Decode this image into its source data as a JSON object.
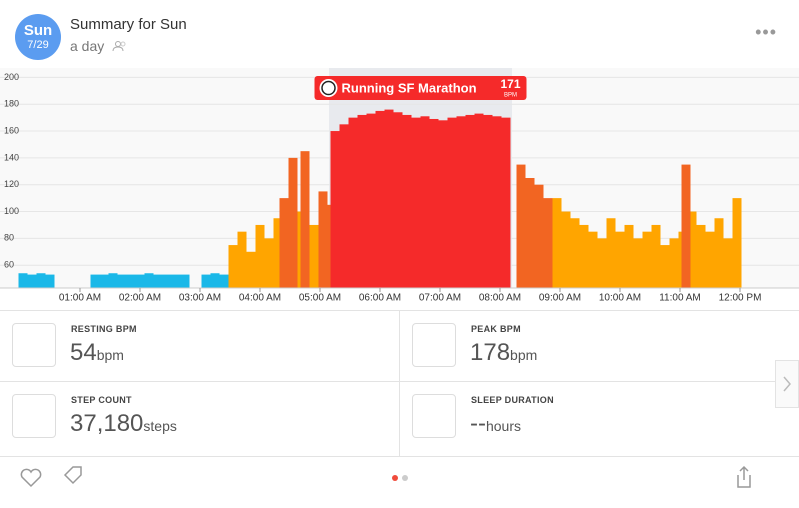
{
  "header": {
    "day": "Sun",
    "date": "7/29",
    "title": "Summary for Sun",
    "subtitle": "a day"
  },
  "chart_data": {
    "type": "bar",
    "xlim": [
      0,
      12.8
    ],
    "ylim": [
      43,
      207
    ],
    "yticks": [
      60,
      80,
      100,
      120,
      140,
      160,
      180,
      200
    ],
    "xticks": [
      {
        "value": 1,
        "label": "01:00 AM"
      },
      {
        "value": 2,
        "label": "02:00 AM"
      },
      {
        "value": 3,
        "label": "03:00 AM"
      },
      {
        "value": 4,
        "label": "04:00 AM"
      },
      {
        "value": 5,
        "label": "05:00 AM"
      },
      {
        "value": 6,
        "label": "06:00 AM"
      },
      {
        "value": 7,
        "label": "07:00 AM"
      },
      {
        "value": 8,
        "label": "08:00 AM"
      },
      {
        "value": 9,
        "label": "09:00 AM"
      },
      {
        "value": 10,
        "label": "10:00 AM"
      },
      {
        "value": 11,
        "label": "11:00 AM"
      },
      {
        "value": 12,
        "label": "12:00 PM"
      }
    ],
    "grid": true,
    "series": [
      {
        "color": "#1ab8e8",
        "x": [
          0.05,
          0.2,
          0.35,
          0.5,
          1.25,
          1.4,
          1.55,
          1.7,
          1.85,
          2.0,
          2.15,
          2.3,
          2.45,
          2.6,
          2.75,
          3.1,
          3.25,
          3.4
        ],
        "values": [
          54,
          53,
          54,
          53,
          53,
          53,
          54,
          53,
          53,
          53,
          54,
          53,
          53,
          53,
          53,
          53,
          54,
          53
        ]
      },
      {
        "color": "#ffa500",
        "x": [
          3.55,
          3.7,
          3.85,
          4.0,
          4.15,
          4.3,
          4.45,
          4.6,
          4.75,
          4.9,
          8.95,
          9.1,
          9.25,
          9.4,
          9.55,
          9.7,
          9.85,
          10.0,
          10.15,
          10.3,
          10.45,
          10.6,
          10.75,
          10.9,
          11.05,
          11.2,
          11.35,
          11.5,
          11.65,
          11.8,
          11.95
        ],
        "values": [
          75,
          85,
          70,
          90,
          80,
          95,
          85,
          100,
          120,
          90,
          110,
          100,
          95,
          90,
          85,
          80,
          95,
          85,
          90,
          80,
          85,
          90,
          75,
          80,
          85,
          100,
          90,
          85,
          95,
          80,
          110
        ]
      },
      {
        "color": "#f26522",
        "x": [
          4.4,
          4.55,
          4.75,
          5.05,
          5.2,
          5.35,
          8.35,
          8.5,
          8.65,
          8.8,
          11.1
        ],
        "values": [
          110,
          140,
          145,
          115,
          105,
          155,
          135,
          125,
          120,
          110,
          135
        ]
      },
      {
        "color": "#f52a2a",
        "x": [
          5.25,
          5.4,
          5.55,
          5.7,
          5.85,
          6.0,
          6.15,
          6.3,
          6.45,
          6.6,
          6.75,
          6.9,
          7.05,
          7.2,
          7.35,
          7.5,
          7.65,
          7.8,
          7.95,
          8.1
        ],
        "values": [
          160,
          165,
          170,
          172,
          173,
          175,
          176,
          174,
          172,
          170,
          171,
          169,
          168,
          170,
          171,
          172,
          173,
          172,
          171,
          170
        ]
      }
    ],
    "activity": {
      "name": "Running SF Marathon",
      "value": 171,
      "unit": "BPM",
      "x_start": 5.15,
      "x_end": 8.2,
      "color": "#f52a2a"
    }
  },
  "stats": [
    {
      "label": "RESTING BPM",
      "value": "54",
      "unit": "bpm"
    },
    {
      "label": "PEAK BPM",
      "value": "178",
      "unit": "bpm"
    },
    {
      "label": "STEP COUNT",
      "value": "37,180",
      "unit": "steps"
    },
    {
      "label": "SLEEP DURATION",
      "value": "--",
      "unit": "hours"
    }
  ]
}
